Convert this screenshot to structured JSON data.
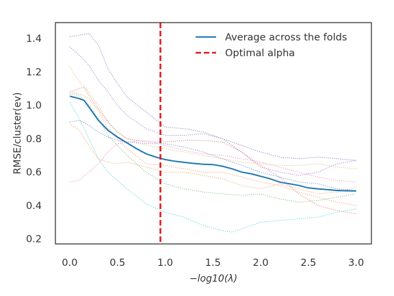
{
  "chart_data": {
    "type": "line",
    "xlabel": "−log10(λ)",
    "ylabel": "RMSE/cluster(ev)",
    "xlim": [
      -0.15,
      3.16
    ],
    "ylim": [
      0.17,
      1.495
    ],
    "xticks": [
      0.0,
      0.5,
      1.0,
      1.5,
      2.0,
      2.5,
      3.0
    ],
    "xtick_labels": [
      "0.0",
      "0.5",
      "1.0",
      "1.5",
      "2.0",
      "2.5",
      "3.0"
    ],
    "yticks": [
      0.2,
      0.4,
      0.6,
      0.8,
      1.0,
      1.2,
      1.4
    ],
    "ytick_labels": [
      "0.2",
      "0.4",
      "0.6",
      "0.8",
      "1.0",
      "1.2",
      "1.4"
    ],
    "grid": false,
    "legend_position": "top-right",
    "legend": [
      {
        "label": "Average across the folds",
        "color": "#1f77b4",
        "style": "solid"
      },
      {
        "label": "Optimal alpha",
        "color": "#e31a1c",
        "style": "dashed"
      }
    ],
    "optimal_alpha_x": 0.95,
    "average": {
      "name": "Average across the folds",
      "color": "#1f77b4",
      "x": [
        0.0,
        0.1,
        0.15,
        0.2,
        0.3,
        0.4,
        0.5,
        0.6,
        0.7,
        0.8,
        0.9,
        1.0,
        1.1,
        1.2,
        1.3,
        1.4,
        1.5,
        1.6,
        1.7,
        1.8,
        1.9,
        2.0,
        2.1,
        2.2,
        2.3,
        2.4,
        2.5,
        2.6,
        2.7,
        2.8,
        2.9,
        3.0
      ],
      "y": [
        1.055,
        1.04,
        1.03,
        0.99,
        0.91,
        0.85,
        0.81,
        0.775,
        0.74,
        0.71,
        0.69,
        0.675,
        0.665,
        0.658,
        0.652,
        0.647,
        0.645,
        0.635,
        0.62,
        0.6,
        0.59,
        0.575,
        0.56,
        0.54,
        0.53,
        0.52,
        0.505,
        0.5,
        0.495,
        0.49,
        0.488,
        0.487
      ]
    },
    "folds": [
      {
        "color": "#7f7fbf",
        "x": [
          0.0,
          0.1,
          0.2,
          0.3,
          0.4,
          0.5,
          0.6,
          0.8,
          1.0,
          1.2,
          1.4,
          1.6,
          1.8,
          2.0,
          2.2,
          2.4,
          2.6,
          2.8,
          3.0
        ],
        "y": [
          1.41,
          1.42,
          1.43,
          1.36,
          1.22,
          1.13,
          1.05,
          0.96,
          0.87,
          0.86,
          0.84,
          0.8,
          0.76,
          0.72,
          0.69,
          0.68,
          0.69,
          0.68,
          0.67
        ]
      },
      {
        "color": "#a07bcf",
        "x": [
          0.0,
          0.1,
          0.2,
          0.3,
          0.4,
          0.5,
          0.6,
          0.8,
          1.0,
          1.2,
          1.4,
          1.6,
          1.8,
          2.0,
          2.2,
          2.4,
          2.6,
          2.8,
          3.0
        ],
        "y": [
          1.35,
          1.3,
          1.24,
          1.15,
          1.08,
          1.0,
          0.94,
          0.86,
          0.82,
          0.82,
          0.83,
          0.8,
          0.72,
          0.63,
          0.6,
          0.58,
          0.6,
          0.65,
          0.67
        ]
      },
      {
        "color": "#e8c170",
        "x": [
          0.0,
          0.1,
          0.2,
          0.3,
          0.4,
          0.5,
          0.6,
          0.8,
          1.0,
          1.2,
          1.4,
          1.6,
          1.8,
          2.0,
          2.2,
          2.4,
          2.6,
          2.8,
          3.0
        ],
        "y": [
          1.23,
          1.14,
          1.08,
          1.0,
          0.9,
          0.84,
          0.8,
          0.76,
          0.74,
          0.72,
          0.7,
          0.68,
          0.66,
          0.65,
          0.64,
          0.64,
          0.65,
          0.63,
          0.62
        ]
      },
      {
        "color": "#e37777",
        "x": [
          0.0,
          0.1,
          0.15,
          0.2,
          0.3,
          0.4,
          0.5,
          0.6,
          0.8,
          1.0,
          1.2,
          1.4,
          1.6,
          1.8,
          2.0,
          2.2,
          2.4,
          2.6,
          2.8,
          3.0
        ],
        "y": [
          1.08,
          1.1,
          1.11,
          1.06,
          0.98,
          0.9,
          0.84,
          0.8,
          0.78,
          0.78,
          0.79,
          0.79,
          0.78,
          0.72,
          0.64,
          0.57,
          0.47,
          0.4,
          0.37,
          0.35
        ]
      },
      {
        "color": "#f0a070",
        "x": [
          0.0,
          0.1,
          0.2,
          0.3,
          0.4,
          0.5,
          0.6,
          0.8,
          1.0,
          1.2,
          1.4,
          1.6,
          1.8,
          2.0,
          2.2,
          2.4,
          2.6,
          2.8,
          3.0
        ],
        "y": [
          1.08,
          1.07,
          1.04,
          0.97,
          0.86,
          0.8,
          0.74,
          0.65,
          0.64,
          0.62,
          0.6,
          0.6,
          0.57,
          0.54,
          0.52,
          0.48,
          0.45,
          0.42,
          0.4
        ]
      },
      {
        "color": "#f08ccf",
        "x": [
          0.0,
          0.1,
          0.2,
          0.3,
          0.4,
          0.5,
          0.6,
          0.8,
          1.0,
          1.2,
          1.4,
          1.6,
          1.8,
          2.0,
          2.2,
          2.4,
          2.6,
          2.8,
          3.0
        ],
        "y": [
          0.54,
          0.55,
          0.6,
          0.65,
          0.72,
          0.77,
          0.78,
          0.79,
          0.76,
          0.73,
          0.71,
          0.7,
          0.68,
          0.66,
          0.63,
          0.6,
          0.57,
          0.55,
          0.54
        ]
      },
      {
        "color": "#f2a65a",
        "x": [
          0.0,
          0.1,
          0.2,
          0.3,
          0.4,
          0.5,
          0.6,
          0.8,
          1.0,
          1.2,
          1.4,
          1.6,
          1.8,
          2.0,
          2.2,
          2.4,
          2.6,
          2.8,
          3.0
        ],
        "y": [
          0.89,
          0.85,
          0.76,
          0.68,
          0.66,
          0.65,
          0.66,
          0.63,
          0.6,
          0.6,
          0.58,
          0.56,
          0.52,
          0.5,
          0.53,
          0.5,
          0.47,
          0.48,
          0.51
        ]
      },
      {
        "color": "#7fbf7f",
        "x": [
          0.0,
          0.1,
          0.2,
          0.3,
          0.4,
          0.5,
          0.6,
          0.8,
          1.0,
          1.2,
          1.4,
          1.6,
          1.8,
          2.0,
          2.2,
          2.4,
          2.6,
          2.8,
          3.0
        ],
        "y": [
          1.07,
          1.06,
          1.0,
          0.92,
          0.82,
          0.76,
          0.7,
          0.6,
          0.53,
          0.5,
          0.48,
          0.47,
          0.46,
          0.47,
          0.44,
          0.42,
          0.43,
          0.45,
          0.47
        ]
      },
      {
        "color": "#5ad1d1",
        "x": [
          0.0,
          0.1,
          0.2,
          0.3,
          0.4,
          0.5,
          0.6,
          0.8,
          1.0,
          1.2,
          1.4,
          1.6,
          1.7,
          1.8,
          2.0,
          2.2,
          2.4,
          2.6,
          2.8,
          3.0
        ],
        "y": [
          1.02,
          0.92,
          0.8,
          0.68,
          0.6,
          0.55,
          0.5,
          0.41,
          0.36,
          0.33,
          0.28,
          0.25,
          0.24,
          0.26,
          0.3,
          0.31,
          0.32,
          0.33,
          0.36,
          0.38
        ]
      },
      {
        "color": "#6a8ed1",
        "x": [
          0.0,
          0.1,
          0.2,
          0.3,
          0.4,
          0.5,
          0.6,
          0.8,
          1.0,
          1.2,
          1.4,
          1.6,
          1.8,
          2.0,
          2.2,
          2.4,
          2.6,
          2.8,
          3.0
        ],
        "y": [
          0.9,
          0.91,
          0.88,
          0.84,
          0.81,
          0.79,
          0.78,
          0.77,
          0.77,
          0.75,
          0.72,
          0.68,
          0.64,
          0.6,
          0.57,
          0.54,
          0.53,
          0.5,
          0.49
        ]
      }
    ]
  }
}
